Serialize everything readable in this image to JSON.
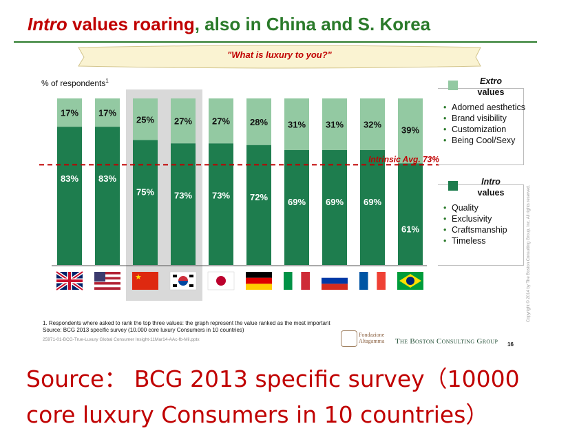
{
  "title": {
    "part1": "Intro",
    "part2": " values roaring",
    "part3": ", also in China and S. Korea"
  },
  "banner": "\"What is luxury to you?\"",
  "ylabel": {
    "text": "% of respondents",
    "sup": "1"
  },
  "chart_data": {
    "type": "bar",
    "stacked": true,
    "title": "\"What is luxury to you?\"",
    "ylabel": "% of respondents",
    "categories": [
      "UK",
      "USA",
      "China",
      "S. Korea",
      "Japan",
      "Germany",
      "Italy",
      "Russia",
      "France",
      "Brazil"
    ],
    "series": [
      {
        "name": "Intro values",
        "values": [
          83,
          83,
          75,
          73,
          73,
          72,
          69,
          69,
          69,
          61
        ],
        "labels": [
          "83%",
          "83%",
          "75%",
          "73%",
          "73%",
          "72%",
          "69%",
          "69%",
          "69%",
          "61%"
        ],
        "color": "#1e7d4e"
      },
      {
        "name": "Extro values",
        "values": [
          17,
          17,
          25,
          27,
          27,
          28,
          31,
          31,
          32,
          39
        ],
        "labels": [
          "17%",
          "17%",
          "25%",
          "27%",
          "27%",
          "28%",
          "31%",
          "31%",
          "32%",
          "39%"
        ],
        "color": "#93c9a2"
      }
    ],
    "reference_line": {
      "label": "Intrinsic Avg. 73%",
      "value": 73,
      "color": "#c00000"
    },
    "highlighted_categories": [
      "China",
      "S. Korea"
    ],
    "ylim": [
      0,
      100
    ]
  },
  "legend": {
    "extro": {
      "title_italic": "Extro",
      "title": "values",
      "items": [
        "Adorned aesthetics",
        "Brand visibility",
        "Customization",
        "Being Cool/Sexy"
      ]
    },
    "intro": {
      "title_italic": "Intro",
      "title": "values",
      "items": [
        "Quality",
        "Exclusivity",
        "Craftsmanship",
        "Timeless"
      ]
    }
  },
  "footnote": {
    "line1": "1. Respondents where asked  to rank the top three values: the graph represent the value ranked as the most important",
    "line2": "Source: BCG 2013 specific survey (10.000 core luxury Consumers in 10 countries)"
  },
  "file_ref": "25971-01-BCG-True-Luxury Global Consumer Insight-11Mar14-AAc-fb-Mil.pptx",
  "fondazione": {
    "line1": "Fondazione",
    "line2": "Altagamma"
  },
  "bcg_logo": "The Boston Consulting Group",
  "page_number": "16",
  "copyright": "Copyright © 2014 by The Boston Consulting Group, Inc. All rights reserved.",
  "source_caption": "Source： BCG 2013 specific survey（10000 core luxury Consumers in 10 countries）",
  "colors": {
    "intro": "#1e7d4e",
    "extro": "#93c9a2",
    "accent_red": "#c00000",
    "title_green": "#2a7a2a",
    "highlight": "#d9d9d9"
  }
}
